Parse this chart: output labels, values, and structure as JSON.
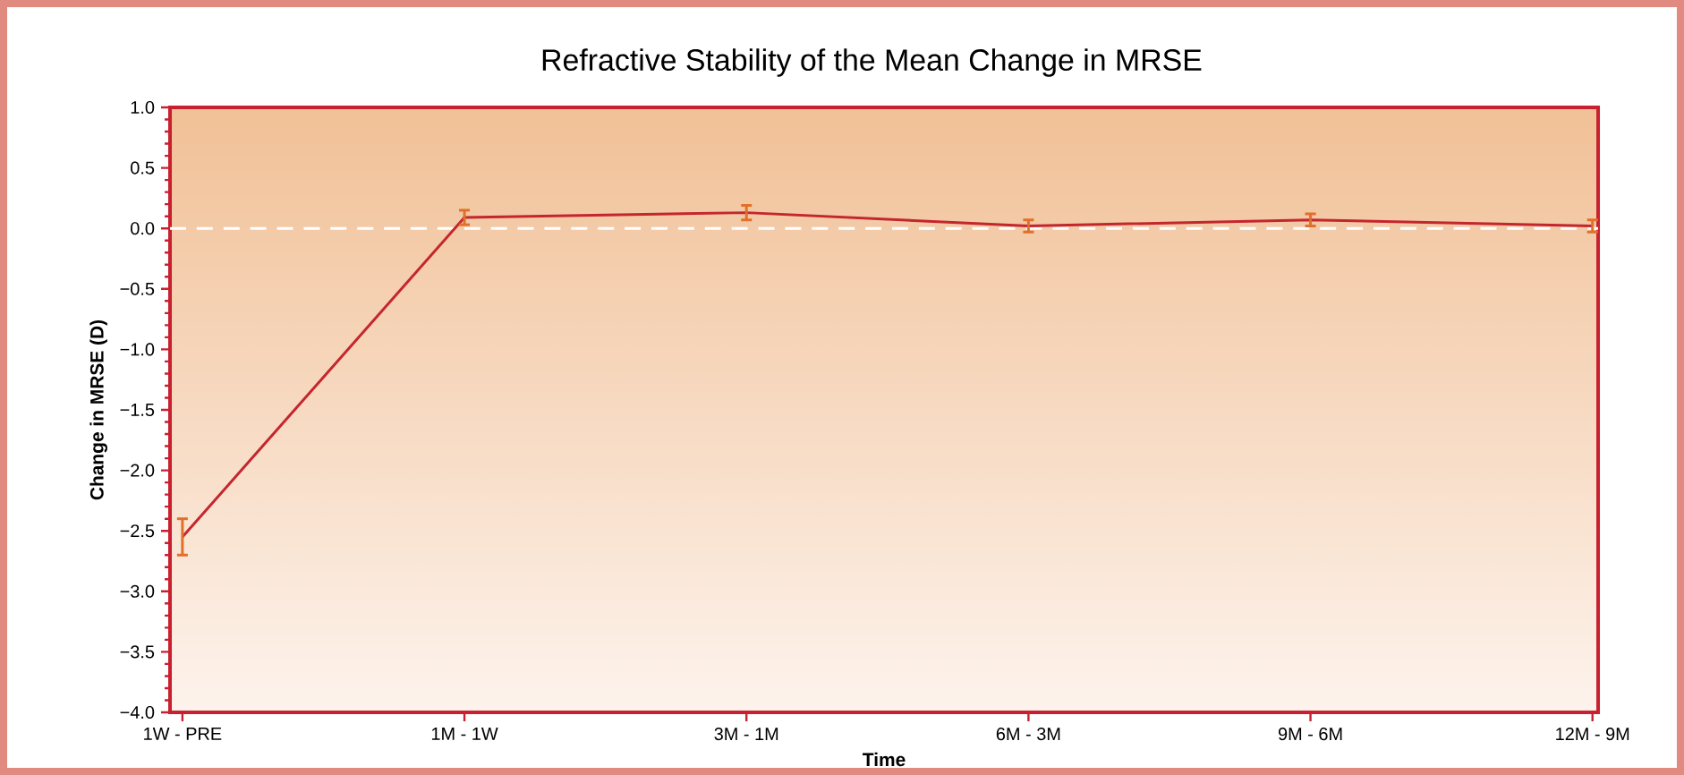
{
  "chart_data": {
    "type": "line",
    "title": "Refractive Stability of the Mean Change in MRSE",
    "xlabel": "Time",
    "ylabel": "Change in MRSE (D)",
    "categories": [
      "1W - PRE",
      "1M - 1W",
      "3M - 1M",
      "6M - 3M",
      "9M - 6M",
      "12M - 9M"
    ],
    "series": [
      {
        "color": "#c4262e",
        "values": [
          -2.55,
          0.09,
          0.13,
          0.02,
          0.07,
          0.02
        ],
        "errors": [
          0.15,
          0.06,
          0.06,
          0.05,
          0.05,
          0.05
        ]
      }
    ],
    "ylim": [
      -4.0,
      1.0
    ],
    "yticks": [
      {
        "value": -4.0,
        "label": "−4.0"
      },
      {
        "value": -3.5,
        "label": "−3.5"
      },
      {
        "value": -3.0,
        "label": "−3.0"
      },
      {
        "value": -2.5,
        "label": "−2.5"
      },
      {
        "value": -2.0,
        "label": "−2.0"
      },
      {
        "value": -1.5,
        "label": "−1.5"
      },
      {
        "value": -1.0,
        "label": "−1.0"
      },
      {
        "value": -0.5,
        "label": "−0.5"
      },
      {
        "value": 0.0,
        "label": "0.0"
      },
      {
        "value": 0.5,
        "label": "0.5"
      },
      {
        "value": 1.0,
        "label": "1.0"
      }
    ],
    "ref_lines": [
      {
        "axis": "y",
        "value": 0,
        "color": "#ffffff",
        "line_style": "dashed"
      }
    ],
    "grid": false,
    "marker": "none",
    "line_style": "solid"
  }
}
